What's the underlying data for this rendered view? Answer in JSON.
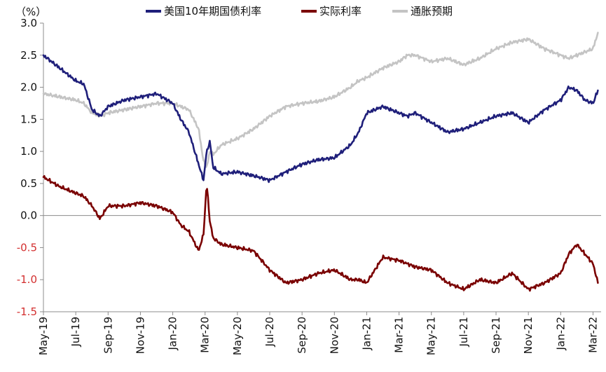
{
  "chart_data": {
    "type": "line",
    "y_unit_label": "（%）",
    "ylim": [
      -1.5,
      3.0
    ],
    "y_ticks": [
      "3.0",
      "2.5",
      "2.0",
      "1.5",
      "1.0",
      "0.5",
      "0.0",
      "-0.5",
      "-1.0",
      "-1.5"
    ],
    "y_tick_values": [
      3.0,
      2.5,
      2.0,
      1.5,
      1.0,
      0.5,
      0.0,
      -0.5,
      -1.0,
      -1.5
    ],
    "x_ticks": [
      "May-19",
      "Jul-19",
      "Sep-19",
      "Nov-19",
      "Jan-20",
      "Mar-20",
      "May-20",
      "Jul-20",
      "Sep-20",
      "Nov-20",
      "Jan-21",
      "Mar-21",
      "May-21",
      "Jul-21",
      "Sep-21",
      "Nov-21",
      "Jan-22",
      "Mar-22"
    ],
    "x_range_months": [
      0,
      34.5
    ],
    "series": [
      {
        "name": "美国10年期国债利率",
        "color": "#1f1f7a",
        "x": [
          0,
          1,
          2,
          2.5,
          3,
          3.5,
          4,
          5,
          6,
          7,
          8,
          8.5,
          9,
          9.6,
          9.9,
          10.1,
          10.3,
          10.5,
          11,
          12,
          13,
          14,
          15,
          16,
          17,
          18,
          19,
          19.5,
          20,
          21,
          22,
          22.5,
          23,
          24,
          25,
          26,
          27,
          28,
          29,
          30,
          31,
          32,
          32.5,
          33,
          33.5,
          34,
          34.3
        ],
        "values": [
          2.5,
          2.3,
          2.1,
          2.05,
          1.65,
          1.55,
          1.7,
          1.8,
          1.85,
          1.9,
          1.75,
          1.5,
          1.3,
          0.8,
          0.55,
          1.0,
          1.15,
          0.75,
          0.65,
          0.68,
          0.62,
          0.55,
          0.68,
          0.8,
          0.87,
          0.9,
          1.1,
          1.3,
          1.6,
          1.7,
          1.6,
          1.55,
          1.6,
          1.45,
          1.3,
          1.35,
          1.45,
          1.55,
          1.6,
          1.45,
          1.65,
          1.8,
          2.0,
          1.95,
          1.8,
          1.75,
          1.95
        ]
      },
      {
        "name": "实际利率",
        "color": "#7a0000",
        "x": [
          0,
          1,
          2,
          2.5,
          3,
          3.5,
          4,
          5,
          6,
          7,
          8,
          8.5,
          9,
          9.6,
          9.9,
          10.1,
          10.3,
          10.5,
          11,
          12,
          13,
          14,
          15,
          16,
          17,
          18,
          19,
          19.5,
          20,
          21,
          22,
          22.5,
          23,
          24,
          25,
          26,
          27,
          28,
          29,
          30,
          31,
          32,
          32.5,
          33,
          33.5,
          34,
          34.3
        ],
        "values": [
          0.6,
          0.45,
          0.35,
          0.3,
          0.15,
          -0.05,
          0.15,
          0.15,
          0.2,
          0.15,
          0.05,
          -0.15,
          -0.25,
          -0.55,
          -0.3,
          0.5,
          -0.1,
          -0.35,
          -0.45,
          -0.5,
          -0.55,
          -0.85,
          -1.05,
          -1.0,
          -0.9,
          -0.85,
          -1.0,
          -1.0,
          -1.05,
          -0.65,
          -0.7,
          -0.75,
          -0.8,
          -0.85,
          -1.05,
          -1.15,
          -1.0,
          -1.05,
          -0.9,
          -1.15,
          -1.05,
          -0.9,
          -0.6,
          -0.45,
          -0.6,
          -0.75,
          -1.05
        ]
      },
      {
        "name": "通胀预期",
        "color": "#c4c4c4",
        "x": [
          0,
          1,
          2,
          2.5,
          3,
          3.5,
          4,
          5,
          6,
          7,
          8,
          8.5,
          9,
          9.6,
          9.9,
          10.1,
          10.3,
          10.5,
          11,
          12,
          13,
          14,
          15,
          16,
          17,
          18,
          19,
          19.5,
          20,
          21,
          22,
          22.5,
          23,
          24,
          25,
          26,
          27,
          28,
          29,
          30,
          31,
          32,
          32.5,
          33,
          33.5,
          34,
          34.3
        ],
        "values": [
          1.9,
          1.85,
          1.8,
          1.75,
          1.6,
          1.55,
          1.6,
          1.65,
          1.7,
          1.75,
          1.75,
          1.7,
          1.65,
          1.35,
          0.85,
          0.75,
          1.0,
          0.95,
          1.1,
          1.2,
          1.35,
          1.55,
          1.7,
          1.75,
          1.78,
          1.85,
          2.0,
          2.1,
          2.15,
          2.3,
          2.4,
          2.5,
          2.5,
          2.4,
          2.45,
          2.35,
          2.45,
          2.6,
          2.7,
          2.75,
          2.6,
          2.5,
          2.45,
          2.5,
          2.55,
          2.6,
          2.85
        ]
      }
    ]
  }
}
